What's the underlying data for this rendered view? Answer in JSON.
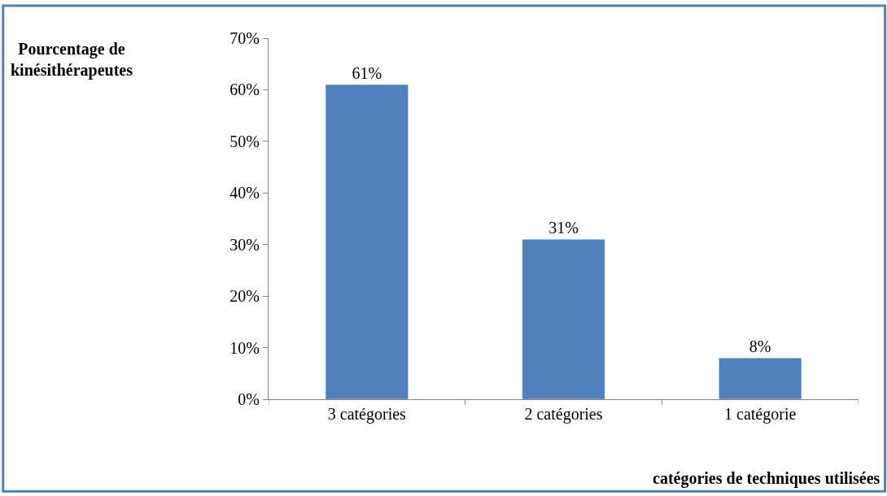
{
  "chart_data": {
    "type": "bar",
    "annotations": [
      "Pourcentage de kinésithérapeutes"
    ],
    "xlabel": "catégories de techniques utilisées",
    "categories": [
      "3 catégories",
      "2 catégories",
      "1 catégorie"
    ],
    "values": [
      61,
      31,
      8
    ],
    "color": "#4f81bd",
    "value_labels": [
      "61%",
      "31%",
      "8%"
    ],
    "ylim": [
      0,
      70
    ],
    "yticks": [
      {
        "value": 0,
        "label": "0%"
      },
      {
        "value": 10,
        "label": "10%"
      },
      {
        "value": 20,
        "label": "20%"
      },
      {
        "value": 30,
        "label": "30%"
      },
      {
        "value": 40,
        "label": "40%"
      },
      {
        "value": 50,
        "label": "50%"
      },
      {
        "value": 60,
        "label": "60%"
      },
      {
        "value": 70,
        "label": "70%"
      }
    ],
    "legend": false
  }
}
